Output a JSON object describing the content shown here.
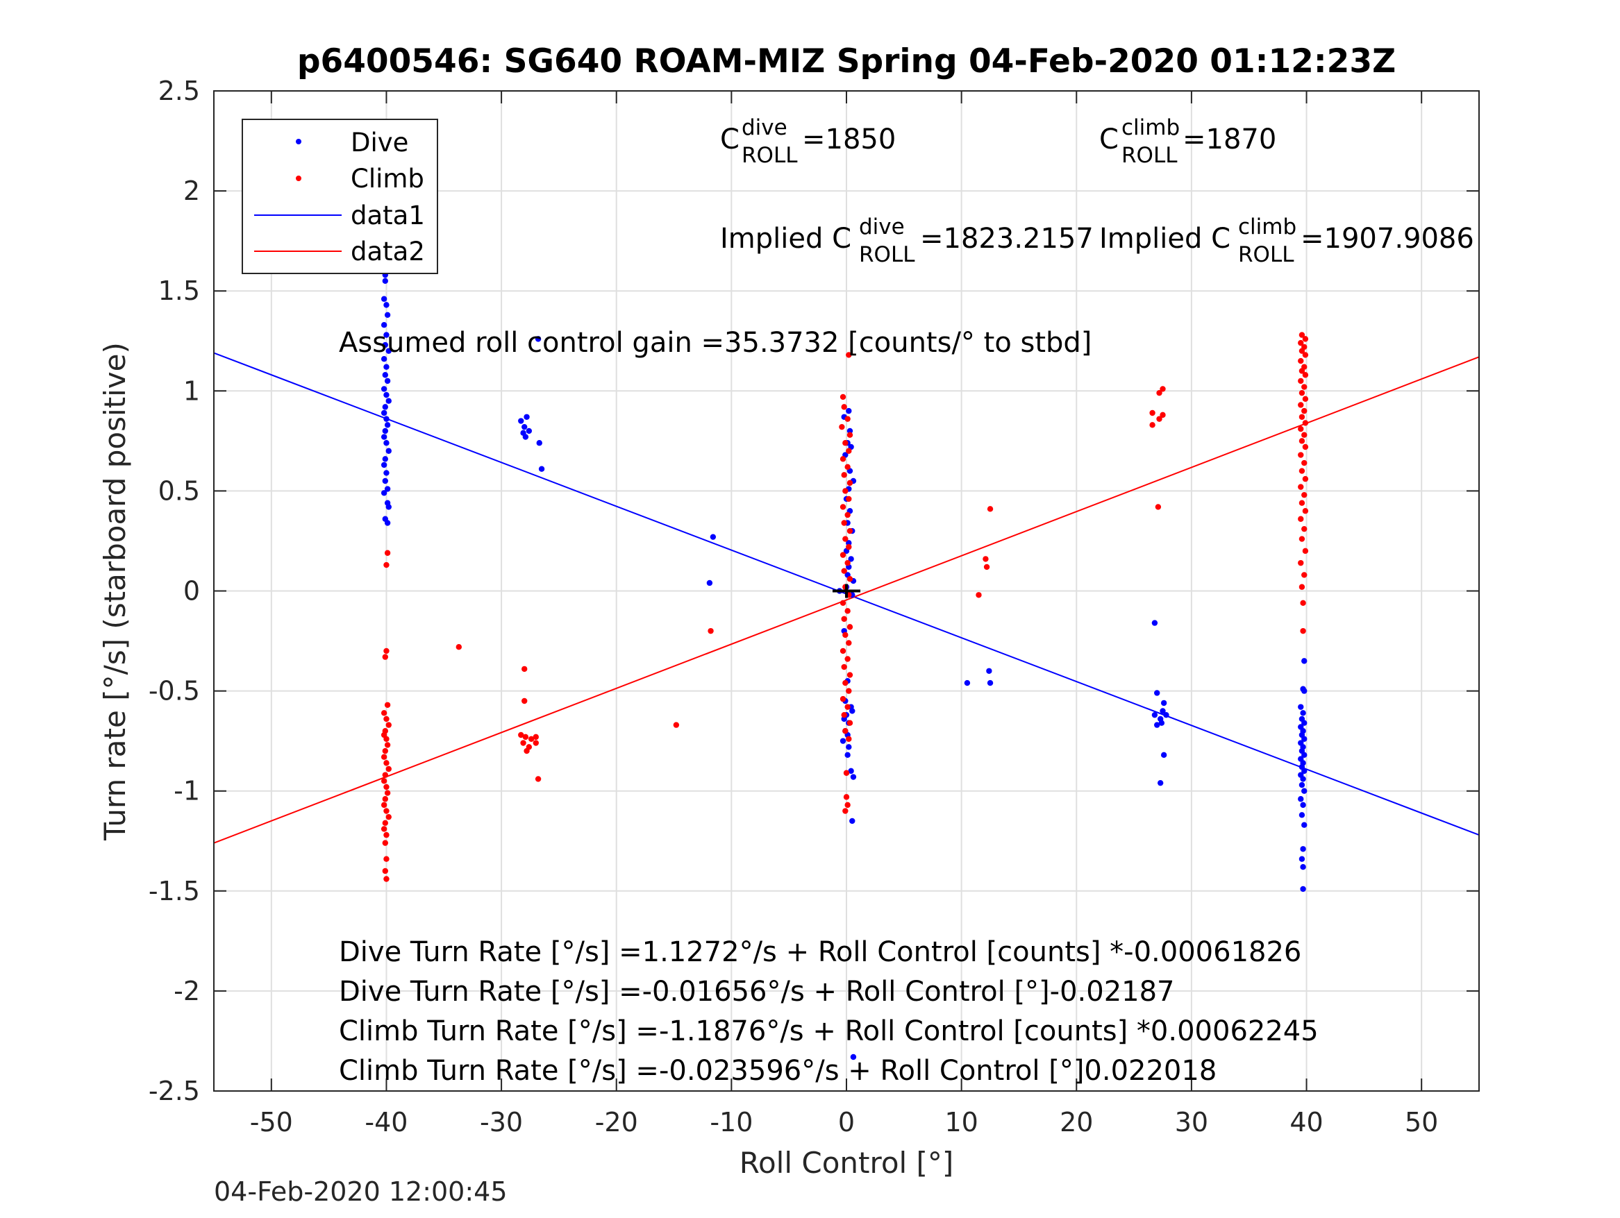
{
  "chart_data": {
    "type": "scatter",
    "title": "p6400546: SG640 ROAM-MIZ Spring 04-Feb-2020 01:12:23Z",
    "xlabel": "Roll Control [°]",
    "ylabel": "Turn rate [°/s] (starboard positive)",
    "xlim": [
      -55,
      55
    ],
    "ylim": [
      -2.5,
      2.5
    ],
    "xticks": [
      -50,
      -40,
      -30,
      -20,
      -10,
      0,
      10,
      20,
      30,
      40,
      50
    ],
    "yticks": [
      -2.5,
      -2,
      -1.5,
      -1,
      -0.5,
      0,
      0.5,
      1,
      1.5,
      2,
      2.5
    ],
    "xtick_labels": [
      "-50",
      "-40",
      "-30",
      "-20",
      "-10",
      "0",
      "10",
      "20",
      "30",
      "40",
      "50"
    ],
    "ytick_labels": [
      "-2.5",
      "-2",
      "-1.5",
      "-1",
      "-0.5",
      "0",
      "0.5",
      "1",
      "1.5",
      "2",
      "2.5"
    ],
    "grid": true,
    "legend": {
      "placement": "top-left",
      "entries": [
        {
          "label": "Dive",
          "kind": "marker",
          "color": "#0000ff"
        },
        {
          "label": "Climb",
          "kind": "marker",
          "color": "#ff0000"
        },
        {
          "label": "data1",
          "kind": "line",
          "color": "#0000ff"
        },
        {
          "label": "data2",
          "kind": "line",
          "color": "#ff0000"
        }
      ]
    },
    "series": [
      {
        "name": "Dive",
        "color": "#0000ff",
        "points": [
          [
            -40.1,
            1.58
          ],
          [
            -40.1,
            1.55
          ],
          [
            -40.2,
            1.46
          ],
          [
            -40.0,
            1.43
          ],
          [
            -39.9,
            1.38
          ],
          [
            -40.2,
            1.33
          ],
          [
            -40.0,
            1.28
          ],
          [
            -40.1,
            1.23
          ],
          [
            -39.8,
            1.2
          ],
          [
            -40.2,
            1.16
          ],
          [
            -40.0,
            1.12
          ],
          [
            -40.1,
            1.08
          ],
          [
            -39.9,
            1.05
          ],
          [
            -40.2,
            1.01
          ],
          [
            -40.0,
            0.98
          ],
          [
            -39.8,
            0.95
          ],
          [
            -40.1,
            0.92
          ],
          [
            -40.2,
            0.89
          ],
          [
            -40.0,
            0.86
          ],
          [
            -39.9,
            0.83
          ],
          [
            -40.1,
            0.8
          ],
          [
            -40.2,
            0.77
          ],
          [
            -40.0,
            0.74
          ],
          [
            -39.8,
            0.7
          ],
          [
            -40.1,
            0.66
          ],
          [
            -40.2,
            0.63
          ],
          [
            -40.0,
            0.59
          ],
          [
            -40.1,
            0.55
          ],
          [
            -39.9,
            0.51
          ],
          [
            -40.2,
            0.49
          ],
          [
            -39.9,
            0.44
          ],
          [
            -39.8,
            0.42
          ],
          [
            -40.1,
            0.36
          ],
          [
            -39.9,
            0.34
          ],
          [
            -28.3,
            0.85
          ],
          [
            -27.8,
            0.87
          ],
          [
            -28.0,
            0.82
          ],
          [
            -27.6,
            0.8
          ],
          [
            -28.1,
            0.79
          ],
          [
            -27.9,
            0.77
          ],
          [
            -26.7,
            0.74
          ],
          [
            -26.5,
            0.61
          ],
          [
            -26.8,
            1.26
          ],
          [
            -11.6,
            0.27
          ],
          [
            -11.9,
            0.04
          ],
          [
            0.2,
            0.9
          ],
          [
            -0.2,
            0.87
          ],
          [
            0.3,
            0.8
          ],
          [
            0.1,
            0.74
          ],
          [
            0.4,
            0.72
          ],
          [
            -0.1,
            0.68
          ],
          [
            0.3,
            0.6
          ],
          [
            0.6,
            0.55
          ],
          [
            0.2,
            0.51
          ],
          [
            0.0,
            0.46
          ],
          [
            0.3,
            0.4
          ],
          [
            0.1,
            0.34
          ],
          [
            0.5,
            0.3
          ],
          [
            0.2,
            0.24
          ],
          [
            0.0,
            0.2
          ],
          [
            0.4,
            0.16
          ],
          [
            0.2,
            0.12
          ],
          [
            0.1,
            0.08
          ],
          [
            0.6,
            0.05
          ],
          [
            0.0,
            0.02
          ],
          [
            -0.6,
            0.0
          ],
          [
            0.5,
            -0.02
          ],
          [
            -0.2,
            -0.2
          ],
          [
            0.1,
            -0.45
          ],
          [
            -0.1,
            -0.55
          ],
          [
            0.4,
            -0.58
          ],
          [
            0.5,
            -0.6
          ],
          [
            0.0,
            -0.62
          ],
          [
            -0.2,
            -0.64
          ],
          [
            0.2,
            -0.66
          ],
          [
            -0.1,
            -0.7
          ],
          [
            0.1,
            -0.72
          ],
          [
            -0.3,
            -0.75
          ],
          [
            0.2,
            -0.78
          ],
          [
            0.1,
            -0.82
          ],
          [
            0.4,
            -0.9
          ],
          [
            0.6,
            -0.93
          ],
          [
            0.5,
            -1.15
          ],
          [
            0.6,
            -2.33
          ],
          [
            10.5,
            -0.46
          ],
          [
            12.4,
            -0.4
          ],
          [
            12.5,
            -0.46
          ],
          [
            26.8,
            -0.16
          ],
          [
            27.0,
            -0.51
          ],
          [
            26.8,
            -0.62
          ],
          [
            27.0,
            -0.67
          ],
          [
            27.3,
            -0.64
          ],
          [
            27.5,
            -0.6
          ],
          [
            27.6,
            -0.56
          ],
          [
            27.8,
            -0.62
          ],
          [
            27.4,
            -0.66
          ],
          [
            27.6,
            -0.82
          ],
          [
            27.3,
            -0.96
          ],
          [
            39.8,
            -0.35
          ],
          [
            39.7,
            -0.49
          ],
          [
            39.8,
            -0.5
          ],
          [
            39.5,
            -0.58
          ],
          [
            39.7,
            -0.61
          ],
          [
            39.6,
            -0.64
          ],
          [
            39.8,
            -0.66
          ],
          [
            39.5,
            -0.68
          ],
          [
            39.7,
            -0.7
          ],
          [
            39.6,
            -0.72
          ],
          [
            39.8,
            -0.74
          ],
          [
            39.5,
            -0.76
          ],
          [
            39.7,
            -0.78
          ],
          [
            39.6,
            -0.8
          ],
          [
            39.8,
            -0.82
          ],
          [
            39.5,
            -0.84
          ],
          [
            39.7,
            -0.86
          ],
          [
            39.6,
            -0.88
          ],
          [
            39.8,
            -0.9
          ],
          [
            39.5,
            -0.92
          ],
          [
            39.7,
            -0.94
          ],
          [
            39.6,
            -0.97
          ],
          [
            39.8,
            -1.0
          ],
          [
            39.5,
            -1.04
          ],
          [
            39.7,
            -1.07
          ],
          [
            39.6,
            -1.12
          ],
          [
            39.8,
            -1.17
          ],
          [
            39.7,
            -1.29
          ],
          [
            39.6,
            -1.34
          ],
          [
            39.7,
            -1.38
          ],
          [
            39.7,
            -1.49
          ]
        ]
      },
      {
        "name": "Climb",
        "color": "#ff0000",
        "points": [
          [
            -39.9,
            0.19
          ],
          [
            -40.0,
            0.13
          ],
          [
            -40.0,
            -0.3
          ],
          [
            -40.1,
            -0.33
          ],
          [
            -39.9,
            -0.57
          ],
          [
            -40.2,
            -0.61
          ],
          [
            -40.0,
            -0.64
          ],
          [
            -39.8,
            -0.67
          ],
          [
            -40.1,
            -0.7
          ],
          [
            -40.2,
            -0.72
          ],
          [
            -40.0,
            -0.74
          ],
          [
            -39.9,
            -0.77
          ],
          [
            -40.1,
            -0.8
          ],
          [
            -40.2,
            -0.83
          ],
          [
            -40.0,
            -0.86
          ],
          [
            -39.8,
            -0.89
          ],
          [
            -40.1,
            -0.92
          ],
          [
            -40.2,
            -0.95
          ],
          [
            -40.0,
            -0.98
          ],
          [
            -39.9,
            -1.01
          ],
          [
            -40.1,
            -1.04
          ],
          [
            -40.2,
            -1.07
          ],
          [
            -40.0,
            -1.1
          ],
          [
            -39.8,
            -1.13
          ],
          [
            -40.1,
            -1.16
          ],
          [
            -40.2,
            -1.19
          ],
          [
            -40.0,
            -1.22
          ],
          [
            -40.1,
            -1.26
          ],
          [
            -40.0,
            -1.34
          ],
          [
            -40.1,
            -1.4
          ],
          [
            -40.0,
            -1.44
          ],
          [
            -33.7,
            -0.28
          ],
          [
            -28.0,
            -0.39
          ],
          [
            -28.0,
            -0.55
          ],
          [
            -28.3,
            -0.72
          ],
          [
            -27.9,
            -0.73
          ],
          [
            -27.4,
            -0.74
          ],
          [
            -27.0,
            -0.73
          ],
          [
            -28.1,
            -0.76
          ],
          [
            -27.6,
            -0.78
          ],
          [
            -27.0,
            -0.76
          ],
          [
            -27.8,
            -0.8
          ],
          [
            -26.8,
            -0.94
          ],
          [
            -14.8,
            -0.67
          ],
          [
            -11.8,
            -0.2
          ],
          [
            -0.3,
            0.97
          ],
          [
            0.2,
            1.18
          ],
          [
            -0.2,
            0.92
          ],
          [
            0.1,
            0.86
          ],
          [
            -0.4,
            0.82
          ],
          [
            0.3,
            0.78
          ],
          [
            -0.1,
            0.74
          ],
          [
            0.2,
            0.7
          ],
          [
            -0.3,
            0.66
          ],
          [
            0.1,
            0.62
          ],
          [
            -0.2,
            0.58
          ],
          [
            0.3,
            0.54
          ],
          [
            -0.1,
            0.5
          ],
          [
            0.2,
            0.46
          ],
          [
            -0.3,
            0.42
          ],
          [
            0.1,
            0.38
          ],
          [
            -0.2,
            0.34
          ],
          [
            0.3,
            0.3
          ],
          [
            -0.1,
            0.26
          ],
          [
            0.2,
            0.22
          ],
          [
            -0.3,
            0.18
          ],
          [
            0.1,
            0.14
          ],
          [
            -0.2,
            0.1
          ],
          [
            0.3,
            0.06
          ],
          [
            -0.1,
            0.02
          ],
          [
            0.2,
            -0.02
          ],
          [
            -0.3,
            -0.06
          ],
          [
            0.1,
            -0.1
          ],
          [
            -0.2,
            -0.14
          ],
          [
            0.3,
            -0.18
          ],
          [
            -0.1,
            -0.22
          ],
          [
            0.2,
            -0.26
          ],
          [
            -0.3,
            -0.3
          ],
          [
            0.1,
            -0.34
          ],
          [
            -0.2,
            -0.38
          ],
          [
            0.3,
            -0.42
          ],
          [
            -0.1,
            -0.46
          ],
          [
            0.2,
            -0.5
          ],
          [
            -0.3,
            -0.54
          ],
          [
            0.1,
            -0.58
          ],
          [
            -0.2,
            -0.62
          ],
          [
            0.3,
            -0.66
          ],
          [
            -0.1,
            -0.7
          ],
          [
            0.2,
            -0.74
          ],
          [
            0.0,
            -0.91
          ],
          [
            0.0,
            -1.03
          ],
          [
            0.1,
            -1.07
          ],
          [
            -0.1,
            -1.1
          ],
          [
            11.5,
            -0.02
          ],
          [
            12.2,
            0.12
          ],
          [
            12.1,
            0.16
          ],
          [
            12.5,
            0.41
          ],
          [
            26.6,
            0.89
          ],
          [
            27.2,
            0.86
          ],
          [
            27.5,
            0.88
          ],
          [
            26.6,
            0.83
          ],
          [
            27.2,
            0.99
          ],
          [
            27.5,
            1.01
          ],
          [
            27.1,
            0.42
          ],
          [
            39.6,
            1.28
          ],
          [
            39.9,
            1.26
          ],
          [
            39.5,
            1.24
          ],
          [
            39.8,
            1.22
          ],
          [
            39.6,
            1.2
          ],
          [
            39.9,
            1.18
          ],
          [
            39.5,
            1.15
          ],
          [
            39.8,
            1.12
          ],
          [
            39.6,
            1.1
          ],
          [
            39.9,
            1.08
          ],
          [
            39.5,
            1.05
          ],
          [
            39.8,
            1.02
          ],
          [
            39.6,
            0.99
          ],
          [
            39.9,
            0.96
          ],
          [
            39.5,
            0.93
          ],
          [
            39.8,
            0.9
          ],
          [
            39.6,
            0.87
          ],
          [
            39.9,
            0.84
          ],
          [
            39.5,
            0.81
          ],
          [
            39.8,
            0.78
          ],
          [
            39.6,
            0.75
          ],
          [
            39.9,
            0.72
          ],
          [
            39.5,
            0.68
          ],
          [
            39.8,
            0.64
          ],
          [
            39.6,
            0.6
          ],
          [
            39.9,
            0.56
          ],
          [
            39.5,
            0.52
          ],
          [
            39.8,
            0.48
          ],
          [
            39.6,
            0.44
          ],
          [
            39.9,
            0.4
          ],
          [
            39.5,
            0.36
          ],
          [
            39.8,
            0.31
          ],
          [
            39.6,
            0.26
          ],
          [
            39.9,
            0.2
          ],
          [
            39.5,
            0.14
          ],
          [
            39.8,
            0.08
          ],
          [
            39.6,
            0.02
          ],
          [
            39.7,
            -0.06
          ],
          [
            39.7,
            -0.2
          ]
        ]
      },
      {
        "name": "data1",
        "kind": "line",
        "color": "#0000ff",
        "points": [
          [
            -55,
            1.19
          ],
          [
            55,
            -1.22
          ]
        ]
      },
      {
        "name": "data2",
        "kind": "line",
        "color": "#ff0000",
        "points": [
          [
            -55,
            -1.26
          ],
          [
            55,
            1.17
          ]
        ]
      }
    ],
    "center_marker": {
      "x": 0,
      "y": 0,
      "color": "#000000"
    },
    "annotations": {
      "c_dive": {
        "main": "C",
        "sup": "dive",
        "sub": "ROLL",
        "value": " =1850"
      },
      "c_climb": {
        "main": "C",
        "sup": "climb",
        "sub": "ROLL",
        "value": " =1870"
      },
      "implied_dive": {
        "prefix": "Implied C",
        "sup": "dive",
        "sub": "ROLL",
        "value": " =1823.2157"
      },
      "implied_climb": {
        "prefix": "Implied C",
        "sup": "climb",
        "sub": "ROLL",
        "value": " =1907.9086"
      },
      "gain": "Assumed roll control gain =35.3732 [counts/° to stbd]",
      "fit_lines": [
        "Dive Turn Rate [°/s] =1.1272°/s + Roll Control [counts] *-0.00061826",
        "Dive Turn Rate [°/s] =-0.01656°/s + Roll Control [°]-0.02187",
        "Climb Turn Rate [°/s] =-1.1876°/s + Roll Control [counts] *0.00062245",
        "Climb Turn Rate [°/s] =-0.023596°/s + Roll Control [°]0.022018"
      ]
    }
  },
  "footer": {
    "timestamp": "04-Feb-2020 12:00:45"
  }
}
